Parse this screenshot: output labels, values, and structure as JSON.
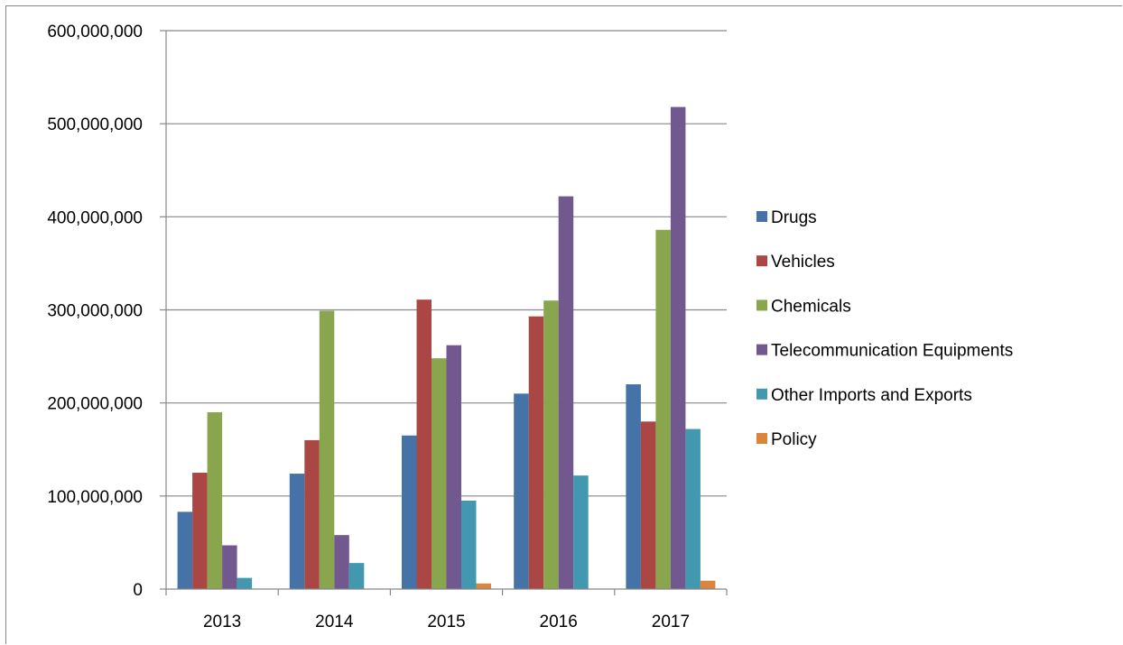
{
  "chart_data": {
    "type": "bar",
    "title": "",
    "xlabel": "",
    "ylabel": "",
    "categories": [
      "2013",
      "2014",
      "2015",
      "2016",
      "2017"
    ],
    "ylim": [
      0,
      600000000
    ],
    "yticks": [
      0,
      100000000,
      200000000,
      300000000,
      400000000,
      500000000,
      600000000
    ],
    "ytick_labels": [
      "0",
      "100,000,000",
      "200,000,000",
      "300,000,000",
      "400,000,000",
      "500,000,000",
      "600,000,000"
    ],
    "grid": "horizontal",
    "legend_position": "right",
    "series": [
      {
        "name": "Drugs",
        "color": "#4572A7",
        "values": [
          83000000,
          124000000,
          165000000,
          210000000,
          220000000
        ]
      },
      {
        "name": "Vehicles",
        "color": "#AA4643",
        "values": [
          125000000,
          160000000,
          311000000,
          293000000,
          180000000
        ]
      },
      {
        "name": "Chemicals",
        "color": "#89A54E",
        "values": [
          190000000,
          299000000,
          248000000,
          310000000,
          386000000
        ]
      },
      {
        "name": "Telecommunication Equipments",
        "color": "#71588F",
        "values": [
          47000000,
          58000000,
          262000000,
          422000000,
          518000000
        ]
      },
      {
        "name": "Other Imports and Exports",
        "color": "#4198AF",
        "values": [
          12000000,
          28000000,
          95000000,
          122000000,
          172000000
        ]
      },
      {
        "name": "Policy",
        "color": "#DB843D",
        "values": [
          0,
          0,
          6000000,
          0,
          9000000
        ]
      }
    ]
  }
}
